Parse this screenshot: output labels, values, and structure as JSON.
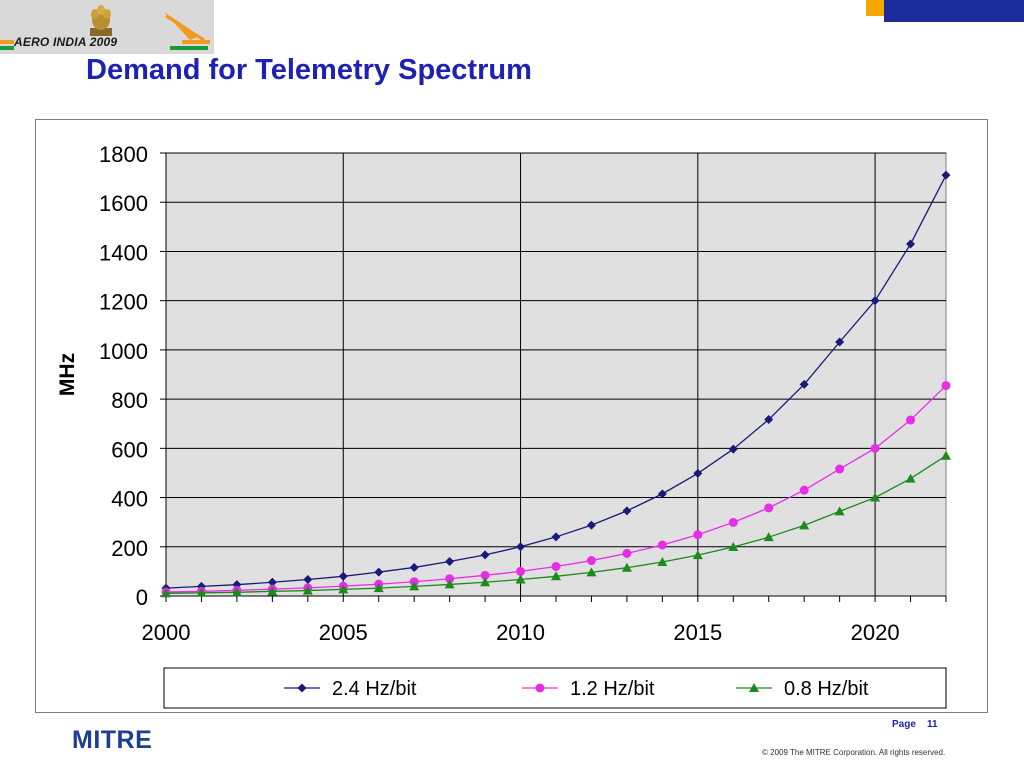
{
  "header": {
    "logo_text": "AERO INDIA 2009",
    "title": "Demand for Telemetry Spectrum"
  },
  "footer": {
    "company_logo": "MITRE",
    "page_label": "Page",
    "page_number": "11",
    "copyright": "© 2009 The MITRE Corporation. All rights reserved."
  },
  "colors": {
    "title_blue": "#1e22b4",
    "plot_bg": "#e0e0e0",
    "series_2_4": "#1a1a7a",
    "series_1_2": "#e62ee6",
    "series_0_8": "#1d8a1d"
  },
  "chart_data": {
    "type": "line",
    "title": "",
    "xlabel": "",
    "ylabel": "MHz",
    "xlim": [
      2000,
      2022
    ],
    "ylim": [
      0,
      1800
    ],
    "xticks": [
      2000,
      2005,
      2010,
      2015,
      2020
    ],
    "yticks": [
      0,
      200,
      400,
      600,
      800,
      1000,
      1200,
      1400,
      1600,
      1800
    ],
    "grid": true,
    "legend_position": "bottom",
    "x": [
      2000,
      2001,
      2002,
      2003,
      2004,
      2005,
      2006,
      2007,
      2008,
      2009,
      2010,
      2011,
      2012,
      2013,
      2014,
      2015,
      2016,
      2017,
      2018,
      2019,
      2020,
      2021,
      2022
    ],
    "series": [
      {
        "name": "2.4 Hz/bit",
        "marker": "diamond",
        "values": [
          32,
          39,
          46,
          56,
          67,
          80,
          97,
          116,
          140,
          167,
          200,
          240,
          288,
          346,
          415,
          498,
          597,
          717,
          860,
          1032,
          1200,
          1430,
          1710
        ]
      },
      {
        "name": "1.2 Hz/bit",
        "marker": "circle",
        "values": [
          16,
          19,
          23,
          28,
          33,
          40,
          48,
          58,
          70,
          84,
          100,
          120,
          144,
          173,
          207,
          249,
          299,
          358,
          430,
          516,
          600,
          715,
          855
        ]
      },
      {
        "name": "0.8 Hz/bit",
        "marker": "triangle",
        "values": [
          11,
          13,
          15,
          19,
          22,
          27,
          32,
          39,
          47,
          56,
          67,
          80,
          96,
          115,
          138,
          166,
          199,
          239,
          287,
          344,
          400,
          477,
          570
        ]
      }
    ]
  }
}
